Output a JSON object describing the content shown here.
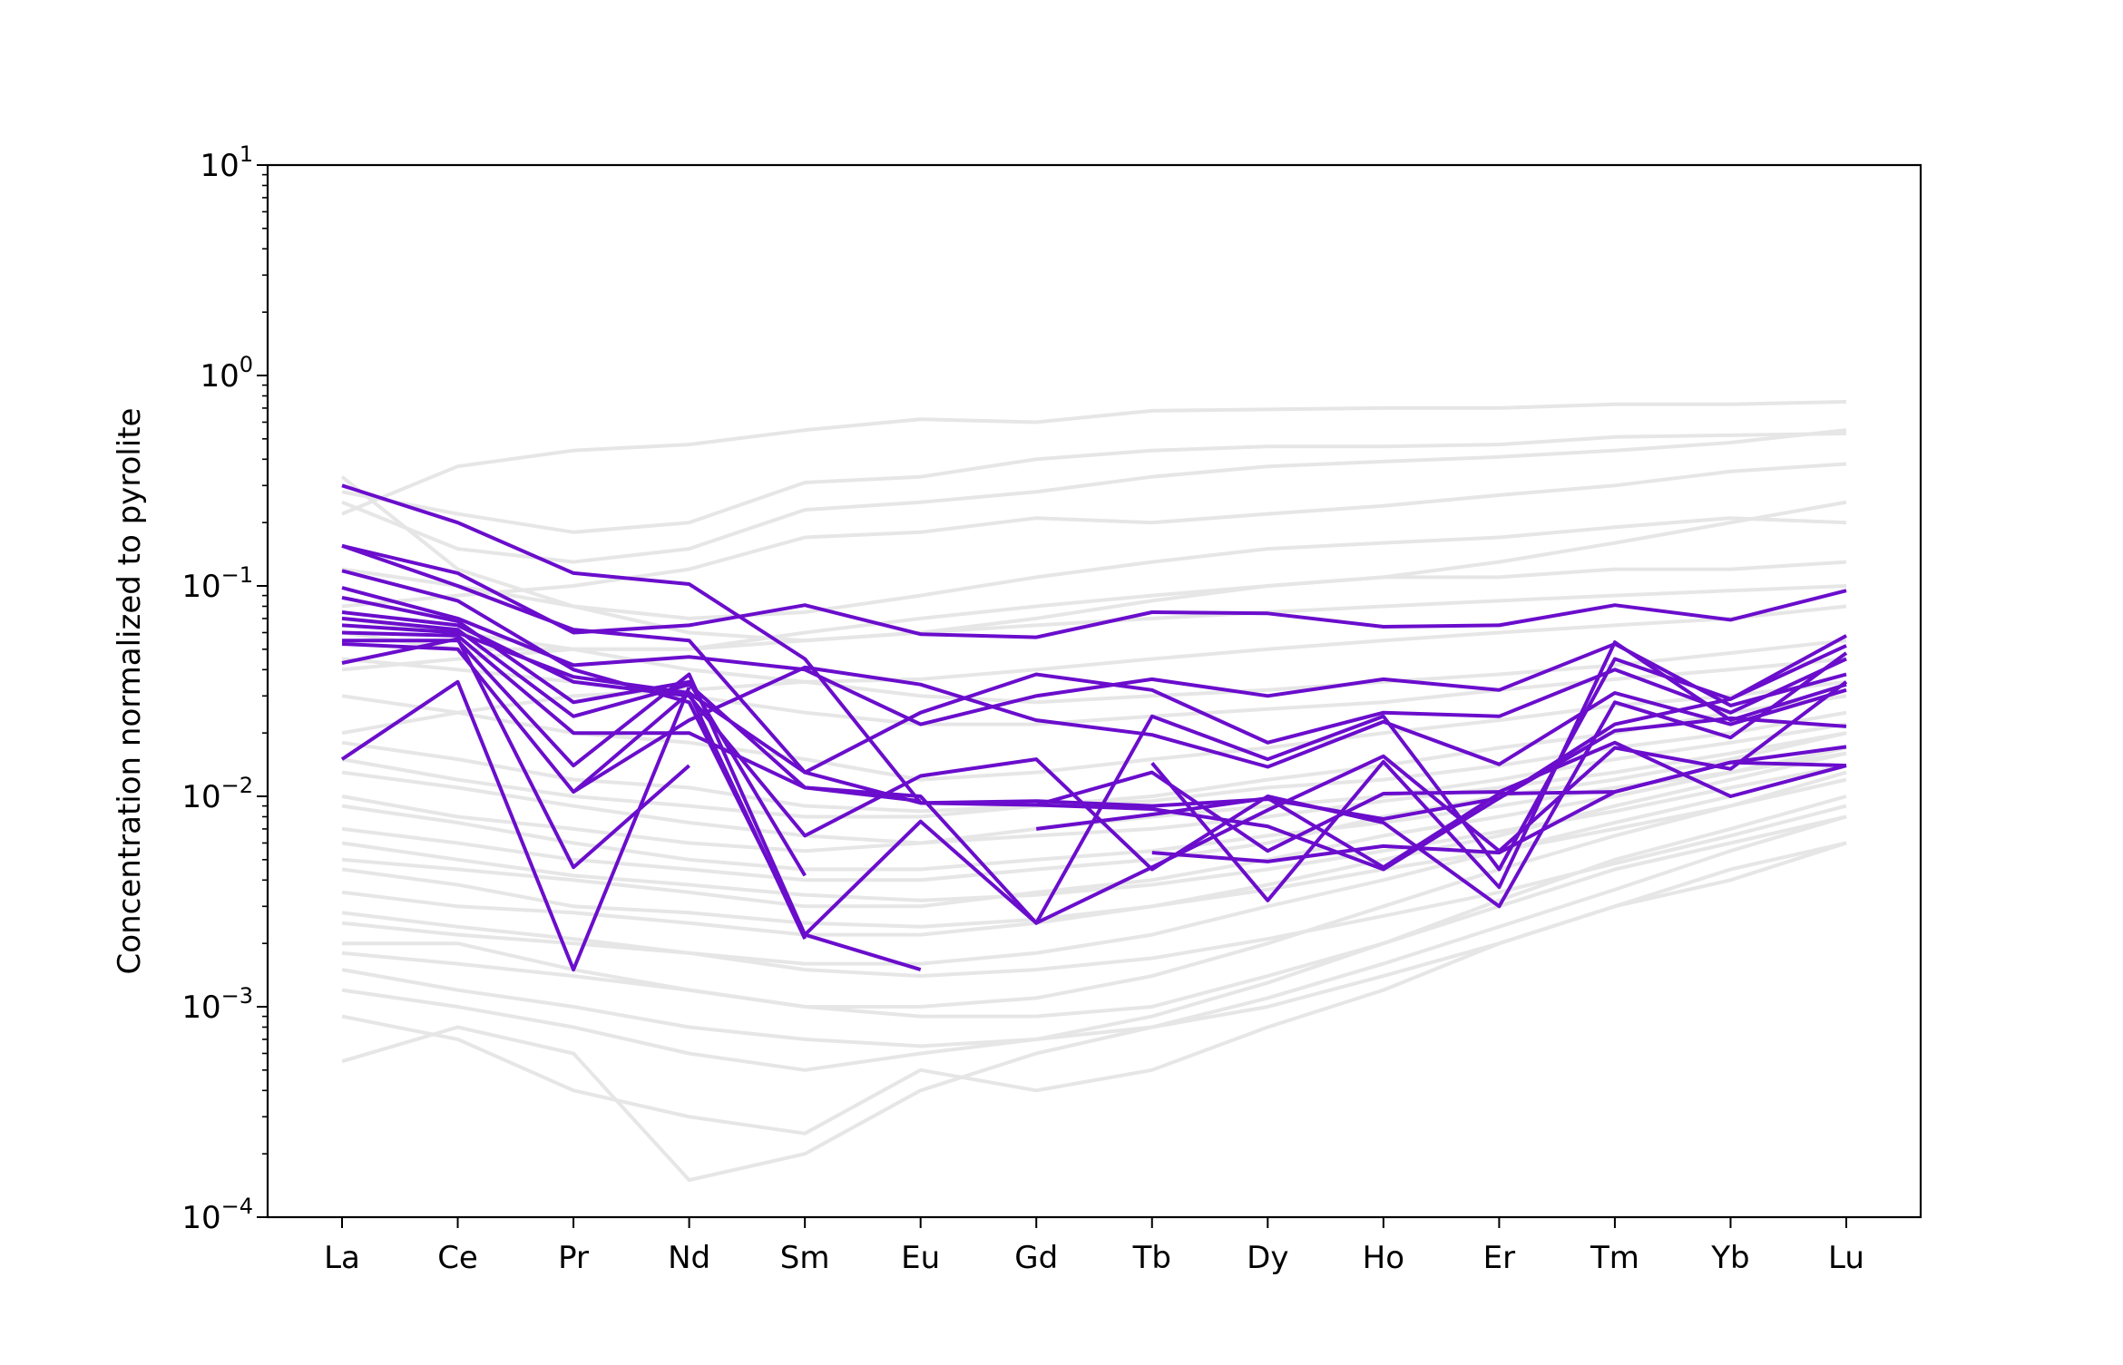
{
  "chart_data": {
    "type": "line",
    "title": "",
    "xlabel": "",
    "ylabel": "Concentration normalized to pyrolite",
    "yscale": "log",
    "ylim": [
      0.0001,
      10
    ],
    "y_ticks": [
      {
        "value": 0.0001,
        "base": "10",
        "exp": "−4"
      },
      {
        "value": 0.001,
        "base": "10",
        "exp": "−3"
      },
      {
        "value": 0.01,
        "base": "10",
        "exp": "−2"
      },
      {
        "value": 0.1,
        "base": "10",
        "exp": "−1"
      },
      {
        "value": 1,
        "base": "10",
        "exp": "0"
      },
      {
        "value": 10,
        "base": "10",
        "exp": "1"
      }
    ],
    "categories": [
      "La",
      "Ce",
      "Pr",
      "Nd",
      "Sm",
      "Eu",
      "Gd",
      "Tb",
      "Dy",
      "Ho",
      "Er",
      "Tm",
      "Yb",
      "Lu"
    ],
    "grid": false,
    "legend": "none",
    "colors": {
      "highlight": "#6a0dcc",
      "background": "#e6e6e6"
    },
    "background_series": [
      {
        "values": [
          0.33,
          0.12,
          0.08,
          0.06,
          0.055,
          0.06,
          0.07,
          0.085,
          0.1,
          0.11,
          0.13,
          0.16,
          0.2,
          0.25
        ]
      },
      {
        "values": [
          0.22,
          0.37,
          0.44,
          0.47,
          0.55,
          0.62,
          0.6,
          0.68,
          0.69,
          0.7,
          0.7,
          0.73,
          0.73,
          0.75
        ]
      },
      {
        "values": [
          0.28,
          0.22,
          0.18,
          0.2,
          0.31,
          0.33,
          0.4,
          0.44,
          0.46,
          0.46,
          0.47,
          0.51,
          0.52,
          0.53
        ]
      },
      {
        "values": [
          0.25,
          0.15,
          0.13,
          0.15,
          0.23,
          0.25,
          0.28,
          0.33,
          0.37,
          0.39,
          0.41,
          0.44,
          0.48,
          0.55
        ]
      },
      {
        "values": [
          0.08,
          0.09,
          0.1,
          0.12,
          0.17,
          0.18,
          0.21,
          0.2,
          0.22,
          0.24,
          0.27,
          0.3,
          0.35,
          0.38
        ]
      },
      {
        "values": [
          0.12,
          0.1,
          0.08,
          0.07,
          0.075,
          0.09,
          0.11,
          0.13,
          0.15,
          0.16,
          0.17,
          0.19,
          0.21,
          0.2
        ]
      },
      {
        "values": [
          0.06,
          0.05,
          0.05,
          0.05,
          0.06,
          0.07,
          0.08,
          0.09,
          0.1,
          0.11,
          0.11,
          0.12,
          0.12,
          0.13
        ]
      },
      {
        "values": [
          0.04,
          0.045,
          0.05,
          0.05,
          0.055,
          0.06,
          0.065,
          0.07,
          0.075,
          0.08,
          0.085,
          0.09,
          0.095,
          0.1
        ]
      },
      {
        "values": [
          0.02,
          0.025,
          0.03,
          0.032,
          0.035,
          0.036,
          0.04,
          0.045,
          0.05,
          0.055,
          0.06,
          0.065,
          0.07,
          0.08
        ]
      },
      {
        "values": [
          0.03,
          0.025,
          0.02,
          0.018,
          0.015,
          0.012,
          0.013,
          0.015,
          0.017,
          0.02,
          0.023,
          0.027,
          0.03,
          0.035
        ]
      },
      {
        "values": [
          0.015,
          0.012,
          0.01,
          0.009,
          0.008,
          0.008,
          0.009,
          0.01,
          0.012,
          0.014,
          0.017,
          0.02,
          0.025,
          0.03
        ]
      },
      {
        "values": [
          0.01,
          0.008,
          0.007,
          0.006,
          0.0055,
          0.006,
          0.007,
          0.008,
          0.009,
          0.01,
          0.012,
          0.015,
          0.018,
          0.022
        ]
      },
      {
        "values": [
          0.007,
          0.006,
          0.005,
          0.0045,
          0.004,
          0.004,
          0.0045,
          0.005,
          0.006,
          0.008,
          0.01,
          0.012,
          0.015,
          0.02
        ]
      },
      {
        "values": [
          0.005,
          0.0045,
          0.004,
          0.0035,
          0.003,
          0.003,
          0.0035,
          0.004,
          0.005,
          0.0065,
          0.008,
          0.01,
          0.013,
          0.017
        ]
      },
      {
        "values": [
          0.0035,
          0.003,
          0.0028,
          0.0025,
          0.0022,
          0.0022,
          0.0025,
          0.003,
          0.0038,
          0.005,
          0.0065,
          0.009,
          0.012,
          0.016
        ]
      },
      {
        "values": [
          0.0025,
          0.0022,
          0.002,
          0.0018,
          0.0016,
          0.0016,
          0.0018,
          0.0022,
          0.003,
          0.004,
          0.0055,
          0.0075,
          0.01,
          0.014
        ]
      },
      {
        "values": [
          0.0018,
          0.0016,
          0.0014,
          0.0012,
          0.001,
          0.001,
          0.0011,
          0.0014,
          0.002,
          0.003,
          0.0045,
          0.0065,
          0.009,
          0.013
        ]
      },
      {
        "values": [
          0.0012,
          0.001,
          0.0008,
          0.0006,
          0.0005,
          0.0006,
          0.0007,
          0.0009,
          0.0013,
          0.002,
          0.0032,
          0.005,
          0.007,
          0.01
        ]
      },
      {
        "values": [
          0.00055,
          0.0008,
          0.0006,
          0.00015,
          0.0002,
          0.0004,
          0.0006,
          0.0008,
          0.001,
          0.0014,
          0.002,
          0.003,
          0.0045,
          0.006
        ]
      },
      {
        "values": [
          0.0009,
          0.0007,
          0.0004,
          0.0003,
          0.00025,
          0.0005,
          0.0004,
          0.0005,
          0.0008,
          0.0012,
          0.002,
          0.003,
          0.004,
          0.006
        ]
      },
      {
        "values": [
          0.002,
          0.002,
          0.0015,
          0.0012,
          0.001,
          0.0009,
          0.0009,
          0.001,
          0.0014,
          0.002,
          0.003,
          0.0045,
          0.006,
          0.008
        ]
      },
      {
        "values": [
          0.0045,
          0.0038,
          0.003,
          0.0028,
          0.0025,
          0.0024,
          0.0026,
          0.003,
          0.0036,
          0.0045,
          0.0055,
          0.007,
          0.009,
          0.012
        ]
      },
      {
        "values": [
          0.006,
          0.005,
          0.0042,
          0.0038,
          0.0034,
          0.0032,
          0.0034,
          0.0038,
          0.0045,
          0.0055,
          0.0068,
          0.0085,
          0.011,
          0.014
        ]
      },
      {
        "values": [
          0.009,
          0.0075,
          0.006,
          0.005,
          0.0045,
          0.0045,
          0.005,
          0.0055,
          0.0065,
          0.0075,
          0.009,
          0.011,
          0.013,
          0.016
        ]
      },
      {
        "values": [
          0.013,
          0.011,
          0.009,
          0.0075,
          0.0065,
          0.006,
          0.0065,
          0.007,
          0.008,
          0.0095,
          0.011,
          0.013,
          0.016,
          0.02
        ]
      },
      {
        "values": [
          0.018,
          0.015,
          0.012,
          0.011,
          0.009,
          0.0085,
          0.009,
          0.0095,
          0.011,
          0.012,
          0.014,
          0.017,
          0.02,
          0.025
        ]
      },
      {
        "values": [
          0.045,
          0.04,
          0.035,
          0.03,
          0.025,
          0.022,
          0.022,
          0.024,
          0.026,
          0.028,
          0.032,
          0.036,
          0.04,
          0.045
        ]
      },
      {
        "values": [
          0.07,
          0.06,
          0.05,
          0.04,
          0.035,
          0.03,
          0.028,
          0.03,
          0.032,
          0.035,
          0.038,
          0.042,
          0.048,
          0.055
        ]
      },
      {
        "values": [
          0.0028,
          0.0024,
          0.0021,
          0.0018,
          0.0015,
          0.0014,
          0.0015,
          0.0017,
          0.0021,
          0.0027,
          0.0035,
          0.0048,
          0.0065,
          0.009
        ]
      },
      {
        "values": [
          0.0015,
          0.0012,
          0.001,
          0.0008,
          0.0007,
          0.00065,
          0.0007,
          0.0008,
          0.0011,
          0.0016,
          0.0024,
          0.0036,
          0.0055,
          0.008
        ]
      }
    ],
    "highlight_series": [
      {
        "values": [
          0.3,
          0.2,
          0.115,
          0.102,
          0.045,
          0.0093,
          0.0095,
          0.009,
          0.0097,
          0.0078,
          0.0098,
          0.0205,
          0.0235,
          0.0215
        ]
      },
      {
        "values": [
          0.155,
          0.115,
          0.06,
          0.065,
          0.081,
          0.059,
          0.057,
          0.075,
          0.074,
          0.064,
          0.065,
          0.081,
          0.069,
          0.095
        ]
      },
      {
        "values": [
          0.155,
          0.1,
          0.062,
          0.055,
          0.013,
          0.0093,
          0.0091,
          0.0087,
          0.0072,
          0.0045,
          0.0098,
          0.022,
          0.029,
          0.052
        ]
      },
      {
        "values": [
          0.118,
          0.085,
          0.04,
          0.028,
          0.0022,
          0.0015,
          null,
          null,
          null,
          null,
          null,
          null,
          null,
          null
        ]
      },
      {
        "values": [
          0.098,
          0.07,
          0.042,
          0.046,
          0.04,
          0.022,
          0.03,
          0.036,
          0.03,
          0.036,
          0.032,
          0.053,
          0.027,
          0.038
        ]
      },
      {
        "values": [
          0.088,
          0.068,
          0.028,
          0.035,
          0.0042,
          null,
          null,
          null,
          null,
          null,
          null,
          null,
          null,
          null
        ]
      },
      {
        "values": [
          0.075,
          0.065,
          0.035,
          0.03,
          0.0065,
          0.0125,
          0.015,
          0.0045,
          0.01,
          0.0075,
          0.003,
          0.028,
          0.019,
          0.048
        ]
      },
      {
        "values": [
          0.07,
          0.062,
          0.024,
          0.034,
          0.011,
          0.01,
          0.0025,
          0.024,
          0.015,
          0.024,
          0.0045,
          0.045,
          0.029,
          0.058
        ]
      },
      {
        "values": [
          0.065,
          0.06,
          0.037,
          0.031,
          0.013,
          0.025,
          0.038,
          0.032,
          0.018,
          0.025,
          0.024,
          0.04,
          0.025,
          0.045
        ]
      },
      {
        "values": [
          0.06,
          0.058,
          0.02,
          0.02,
          0.011,
          0.0095,
          null,
          null,
          null,
          null,
          null,
          null,
          null,
          null
        ]
      },
      {
        "values": [
          0.055,
          0.055,
          0.014,
          0.038,
          0.0022,
          0.0076,
          0.0025,
          0.0046,
          0.0086,
          0.0155,
          0.0055,
          0.017,
          0.0135,
          0.035
        ]
      },
      {
        "values": [
          0.053,
          0.05,
          0.0105,
          0.023,
          0.041,
          0.034,
          0.023,
          0.0196,
          0.0138,
          0.0226,
          0.0142,
          0.031,
          0.022,
          0.032
        ]
      },
      {
        "values": [
          0.043,
          0.056,
          0.0046,
          0.014,
          null,
          null,
          null,
          0.0144,
          0.0032,
          0.0146,
          0.0037,
          0.054,
          0.023,
          0.034
        ]
      },
      {
        "values": [
          0.015,
          0.035,
          0.0015,
          0.033,
          null,
          null,
          0.007,
          0.0082,
          0.0098,
          0.0046,
          0.0103,
          0.0105,
          0.0145,
          0.0172
        ]
      },
      {
        "values": [
          null,
          null,
          0.0105,
          0.031,
          0.0021,
          null,
          null,
          0.0054,
          0.0049,
          0.0058,
          0.0054,
          0.0105,
          0.0145,
          0.014
        ]
      },
      {
        "values": [
          null,
          null,
          null,
          null,
          null,
          null,
          0.0091,
          0.013,
          0.0055,
          0.0103,
          0.0105,
          0.018,
          0.01,
          0.014
        ]
      }
    ]
  }
}
